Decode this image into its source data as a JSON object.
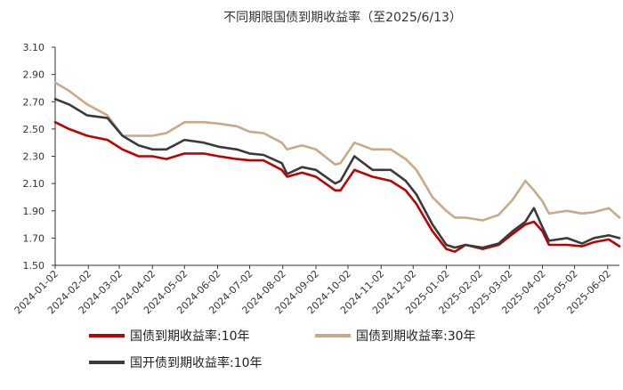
{
  "chart_data": {
    "type": "line",
    "title": "不同期限国债到期收益率（至2025/6/13）",
    "xlabel": "",
    "ylabel": "",
    "ylim": [
      1.5,
      3.1
    ],
    "yticks": [
      "1.50",
      "1.70",
      "1.90",
      "2.10",
      "2.30",
      "2.50",
      "2.70",
      "2.90",
      "3.10"
    ],
    "yticks_values": [
      1.5,
      1.7,
      1.9,
      2.1,
      2.3,
      2.5,
      2.7,
      2.9,
      3.1
    ],
    "xticks": [
      "2024-01-02",
      "2024-02-02",
      "2024-03-02",
      "2024-04-02",
      "2024-05-02",
      "2024-06-02",
      "2024-07-02",
      "2024-08-02",
      "2024-09-02",
      "2024-10-02",
      "2024-11-02",
      "2024-12-02",
      "2025-01-02",
      "2025-02-02",
      "2025-03-02",
      "2025-04-02",
      "2025-05-02",
      "2025-06-02"
    ],
    "x_start": "2024-01-02",
    "x_end": "2025-06-13",
    "grid": false,
    "legend_position": "bottom",
    "x": [
      "2024-01-02",
      "2024-01-15",
      "2024-02-01",
      "2024-02-20",
      "2024-03-05",
      "2024-03-20",
      "2024-04-02",
      "2024-04-15",
      "2024-05-02",
      "2024-05-20",
      "2024-06-03",
      "2024-06-20",
      "2024-07-02",
      "2024-07-15",
      "2024-08-01",
      "2024-08-06",
      "2024-08-20",
      "2024-09-02",
      "2024-09-20",
      "2024-09-25",
      "2024-10-08",
      "2024-10-25",
      "2024-11-11",
      "2024-11-25",
      "2024-12-05",
      "2024-12-20",
      "2025-01-02",
      "2025-01-10",
      "2025-01-20",
      "2025-02-05",
      "2025-02-20",
      "2025-03-05",
      "2025-03-17",
      "2025-03-25",
      "2025-04-02",
      "2025-04-08",
      "2025-04-25",
      "2025-05-09",
      "2025-05-20",
      "2025-06-03",
      "2025-06-13"
    ],
    "series": [
      {
        "name": "国债到期收益率:10年",
        "color": "#c00000",
        "values": [
          2.55,
          2.5,
          2.45,
          2.42,
          2.35,
          2.3,
          2.3,
          2.28,
          2.32,
          2.32,
          2.3,
          2.28,
          2.27,
          2.27,
          2.2,
          2.15,
          2.18,
          2.15,
          2.05,
          2.05,
          2.2,
          2.15,
          2.12,
          2.05,
          1.95,
          1.75,
          1.62,
          1.6,
          1.65,
          1.62,
          1.65,
          1.73,
          1.8,
          1.82,
          1.75,
          1.65,
          1.65,
          1.64,
          1.67,
          1.69,
          1.64
        ]
      },
      {
        "name": "国债到期收益率:30年",
        "color": "#c8a98a",
        "values": [
          2.84,
          2.78,
          2.68,
          2.6,
          2.45,
          2.45,
          2.45,
          2.47,
          2.55,
          2.55,
          2.54,
          2.52,
          2.48,
          2.47,
          2.4,
          2.35,
          2.38,
          2.35,
          2.24,
          2.25,
          2.4,
          2.35,
          2.35,
          2.28,
          2.2,
          2.0,
          1.9,
          1.85,
          1.85,
          1.83,
          1.87,
          1.98,
          2.12,
          2.05,
          1.97,
          1.88,
          1.9,
          1.88,
          1.89,
          1.92,
          1.85
        ]
      },
      {
        "name": "国开债到期收益率:10年",
        "color": "#3a3a3a",
        "values": [
          2.72,
          2.68,
          2.6,
          2.58,
          2.45,
          2.38,
          2.35,
          2.35,
          2.42,
          2.4,
          2.37,
          2.35,
          2.32,
          2.31,
          2.25,
          2.17,
          2.22,
          2.2,
          2.1,
          2.12,
          2.3,
          2.2,
          2.2,
          2.12,
          2.02,
          1.8,
          1.65,
          1.63,
          1.65,
          1.63,
          1.66,
          1.75,
          1.82,
          1.92,
          1.78,
          1.68,
          1.7,
          1.66,
          1.7,
          1.72,
          1.7
        ]
      }
    ]
  }
}
